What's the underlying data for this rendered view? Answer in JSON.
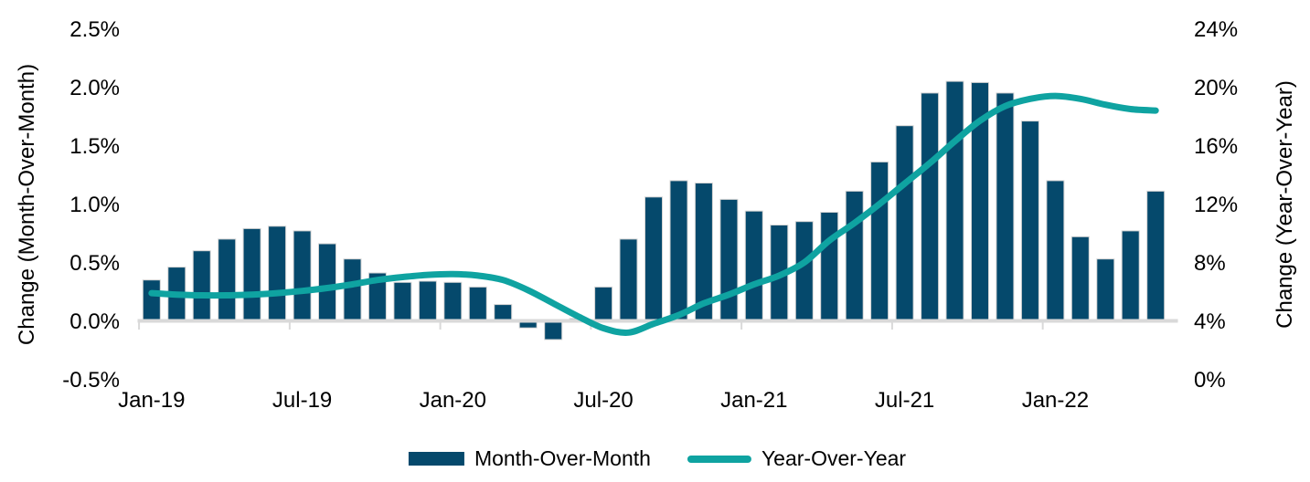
{
  "chart_data": {
    "type": "combo",
    "title": "",
    "categories": [
      "Jan-19",
      "Feb-19",
      "Mar-19",
      "Apr-19",
      "May-19",
      "Jun-19",
      "Jul-19",
      "Aug-19",
      "Sep-19",
      "Oct-19",
      "Nov-19",
      "Dec-19",
      "Jan-20",
      "Feb-20",
      "Mar-20",
      "Apr-20",
      "May-20",
      "Jun-20",
      "Jul-20",
      "Aug-20",
      "Sep-20",
      "Oct-20",
      "Nov-20",
      "Dec-20",
      "Jan-21",
      "Feb-21",
      "Mar-21",
      "Apr-21",
      "May-21",
      "Jun-21",
      "Jul-21",
      "Aug-21",
      "Sep-21",
      "Oct-21",
      "Nov-21",
      "Dec-21",
      "Jan-22",
      "Feb-22",
      "Mar-22",
      "Apr-22",
      "May-22"
    ],
    "x_axis_labels": [
      "Jan-19",
      "Jul-19",
      "Jan-20",
      "Jul-20",
      "Jan-21",
      "Jul-21",
      "Jan-22"
    ],
    "series": [
      {
        "name": "Month-Over-Month",
        "type": "bar",
        "axis": "left",
        "unit": "%",
        "values": [
          0.35,
          0.46,
          0.6,
          0.7,
          0.79,
          0.81,
          0.77,
          0.66,
          0.53,
          0.41,
          0.33,
          0.34,
          0.33,
          0.29,
          0.14,
          -0.06,
          -0.16,
          0.02,
          0.29,
          0.7,
          1.06,
          1.2,
          1.18,
          1.04,
          0.94,
          0.82,
          0.85,
          0.93,
          1.11,
          1.36,
          1.67,
          1.95,
          2.05,
          2.04,
          1.95,
          1.71,
          1.2,
          0.72,
          0.53,
          0.77,
          1.11
        ]
      },
      {
        "name": "Year-Over-Year",
        "type": "line",
        "axis": "right",
        "unit": "%",
        "values": [
          5.9,
          5.8,
          5.75,
          5.75,
          5.8,
          5.9,
          6.05,
          6.25,
          6.5,
          6.8,
          7.0,
          7.15,
          7.2,
          7.1,
          6.8,
          6.1,
          5.2,
          4.3,
          3.5,
          3.2,
          3.8,
          4.4,
          5.2,
          5.8,
          6.5,
          7.1,
          8.0,
          9.5,
          10.7,
          12.0,
          13.4,
          14.8,
          16.3,
          17.7,
          18.7,
          19.2,
          19.4,
          19.2,
          18.8,
          18.5,
          18.4
        ]
      }
    ],
    "left_axis": {
      "title": "Change (Month-Over-Month)",
      "tick_labels": [
        "2.5%",
        "2.0%",
        "1.5%",
        "1.0%",
        "0.5%",
        "0.0%",
        "-0.5%"
      ],
      "min": -0.5,
      "max": 2.5
    },
    "right_axis": {
      "title": "Change (Year-Over-Year)",
      "tick_labels": [
        "24%",
        "20%",
        "16%",
        "12%",
        "8%",
        "4%",
        "0%"
      ],
      "min": 0,
      "max": 24
    },
    "legend": {
      "position": "bottom",
      "items": [
        "Month-Over-Month",
        "Year-Over-Year"
      ]
    },
    "grid": false
  },
  "colors": {
    "bar": "#05496c",
    "bar_border": "#d4d4d4",
    "line": "#0fa3a1",
    "axis": "#d9d9d9",
    "text": "#000000",
    "background": "#ffffff"
  }
}
